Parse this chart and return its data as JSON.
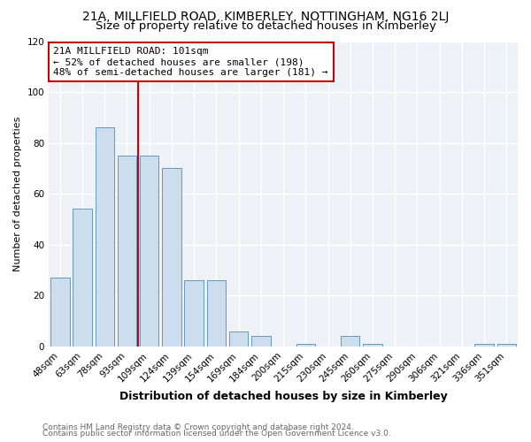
{
  "title": "21A, MILLFIELD ROAD, KIMBERLEY, NOTTINGHAM, NG16 2LJ",
  "subtitle": "Size of property relative to detached houses in Kimberley",
  "xlabel": "Distribution of detached houses by size in Kimberley",
  "ylabel": "Number of detached properties",
  "bar_labels": [
    "48sqm",
    "63sqm",
    "78sqm",
    "93sqm",
    "109sqm",
    "124sqm",
    "139sqm",
    "154sqm",
    "169sqm",
    "184sqm",
    "200sqm",
    "215sqm",
    "230sqm",
    "245sqm",
    "260sqm",
    "275sqm",
    "290sqm",
    "306sqm",
    "321sqm",
    "336sqm",
    "351sqm"
  ],
  "bar_values": [
    27,
    54,
    86,
    75,
    75,
    70,
    26,
    26,
    6,
    4,
    0,
    1,
    0,
    4,
    1,
    0,
    0,
    0,
    0,
    1,
    1
  ],
  "bar_color": "#ccdded",
  "bar_edge_color": "#6699bb",
  "annotation_box_text": "21A MILLFIELD ROAD: 101sqm\n← 52% of detached houses are smaller (198)\n48% of semi-detached houses are larger (181) →",
  "annotation_box_color": "#ffffff",
  "annotation_box_edge_color": "#cc0000",
  "vline_color": "#cc0000",
  "vline_x_index": 4,
  "ylim": [
    0,
    120
  ],
  "yticks": [
    0,
    20,
    40,
    60,
    80,
    100,
    120
  ],
  "footer_line1": "Contains HM Land Registry data © Crown copyright and database right 2024.",
  "footer_line2": "Contains public sector information licensed under the Open Government Licence v3.0.",
  "background_color": "#ffffff",
  "plot_bg_color": "#eef2f7",
  "grid_color": "#ffffff",
  "title_fontsize": 10,
  "subtitle_fontsize": 9.5,
  "xlabel_fontsize": 9,
  "ylabel_fontsize": 8,
  "tick_fontsize": 7.5,
  "footer_fontsize": 6.5,
  "ann_fontsize": 8
}
